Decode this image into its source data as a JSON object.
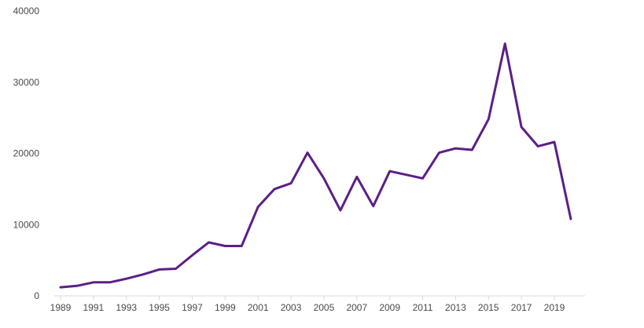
{
  "chart_data": {
    "type": "line",
    "title": "",
    "xlabel": "",
    "ylabel": "",
    "ylim": [
      0,
      40000
    ],
    "y_ticks": [
      "0",
      "10000",
      "20000",
      "30000",
      "40000"
    ],
    "x_ticks": [
      "1989",
      "1991",
      "1993",
      "1995",
      "1997",
      "1999",
      "2001",
      "2003",
      "2005",
      "2007",
      "2009",
      "2011",
      "2013",
      "2015",
      "2017",
      "2019"
    ],
    "grid": false,
    "legend": "none",
    "series": [
      {
        "color": "#5b1f87",
        "x": [
          1989,
          1990,
          1991,
          1992,
          1993,
          1994,
          1995,
          1996,
          1997,
          1998,
          1999,
          2000,
          2001,
          2002,
          2003,
          2004,
          2005,
          2006,
          2007,
          2008,
          2009,
          2010,
          2011,
          2012,
          2013,
          2014,
          2015,
          2016,
          2017,
          2018,
          2019,
          2020
        ],
        "values": [
          1200,
          1400,
          1900,
          1900,
          2400,
          3000,
          3700,
          3800,
          5700,
          7500,
          7000,
          7000,
          12500,
          15000,
          15800,
          20100,
          16500,
          12000,
          16700,
          12600,
          17500,
          17000,
          16500,
          20100,
          20700,
          20500,
          24800,
          35400,
          23700,
          21000,
          21600,
          10800
        ]
      }
    ]
  }
}
